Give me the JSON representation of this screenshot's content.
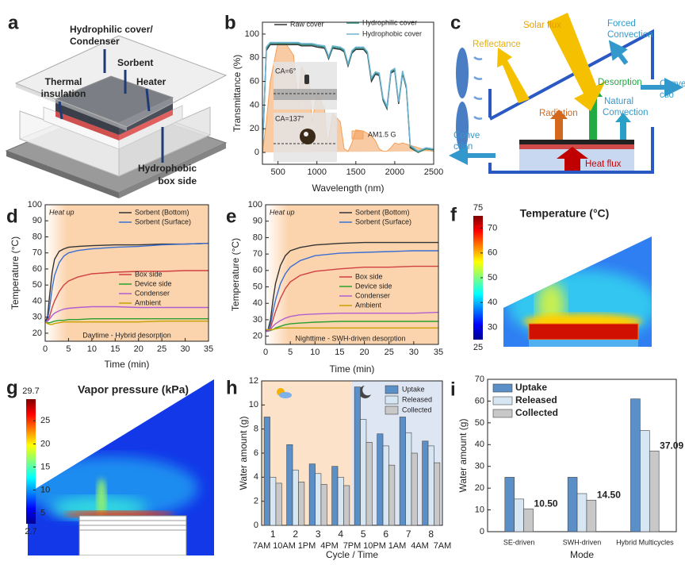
{
  "panel_labels": [
    "a",
    "b",
    "c",
    "d",
    "e",
    "f",
    "g",
    "h",
    "i"
  ],
  "figure_a": {
    "labels": {
      "cover": [
        "Hydrophilic cover/",
        "Condenser"
      ],
      "sorbent": "Sorbent",
      "heater": "Heater",
      "insulation": [
        "Thermal",
        "insulation"
      ],
      "box_side": [
        "Hydrophobic",
        "box side"
      ]
    }
  },
  "figure_c": {
    "labels": {
      "solar": "Solar flux",
      "reflectance": "Reflectance",
      "forced": [
        "Forced",
        "Convection"
      ],
      "desorption": "Desorption",
      "natural": [
        "Natural",
        "Convection"
      ],
      "radiation": "Radiation",
      "convection_left": [
        "Conve",
        "ction"
      ],
      "convection_right": [
        "Conve",
        "ctio"
      ],
      "heat": "Heat flux"
    }
  },
  "chart_data": [
    {
      "type": "line",
      "xlabel": "Wavelength (nm)",
      "ylabel": "Transmittance (%)",
      "x": [
        300,
        350,
        400,
        500,
        600,
        700,
        760,
        800,
        900,
        940,
        1000,
        1100,
        1130,
        1150,
        1200,
        1300,
        1350,
        1400,
        1450,
        1500,
        1600,
        1650,
        1700,
        1750,
        1800,
        1850,
        1900,
        1950,
        2000,
        2050,
        2100,
        2150,
        2200,
        2300,
        2400,
        2500
      ],
      "xlim": [
        300,
        2500
      ],
      "xticks": [
        500,
        1000,
        1500,
        2000,
        2500
      ],
      "ylim": [
        -10,
        110
      ],
      "yticks": [
        0,
        20,
        40,
        60,
        80,
        100
      ],
      "series": [
        {
          "name": "Raw cover",
          "color": "#333333",
          "values": [
            0,
            86,
            91,
            91,
            91,
            91,
            91,
            90,
            90,
            90,
            89,
            88,
            83,
            79,
            88,
            87,
            85,
            73,
            84,
            87,
            87,
            83,
            60,
            66,
            65,
            44,
            37,
            67,
            69,
            41,
            67,
            54,
            4,
            0,
            3,
            2
          ]
        },
        {
          "name": "Hydrophilic cover",
          "color": "#2e8b7a",
          "values": [
            0,
            88,
            92,
            92,
            92,
            92,
            92,
            91,
            91,
            91,
            90,
            89,
            84,
            80,
            89,
            88,
            86,
            74,
            85,
            88,
            88,
            84,
            62,
            67,
            66,
            45,
            38,
            68,
            70,
            42,
            68,
            55,
            5,
            0,
            3,
            2
          ]
        },
        {
          "name": "Hydrophobic cover",
          "color": "#6fb3d6",
          "values": [
            0,
            89,
            93,
            93,
            93,
            93,
            93,
            92,
            92,
            92,
            91,
            90,
            85,
            81,
            90,
            89,
            87,
            75,
            86,
            89,
            89,
            85,
            63,
            68,
            67,
            46,
            39,
            69,
            71,
            43,
            69,
            56,
            6,
            1,
            4,
            3
          ]
        },
        {
          "name": "AM1.5 G",
          "color": "#f3a05a",
          "area": true,
          "values": [
            0,
            25,
            60,
            93,
            92,
            82,
            40,
            72,
            62,
            25,
            52,
            36,
            10,
            12,
            33,
            26,
            3,
            1,
            8,
            19,
            18,
            16,
            14,
            10,
            3,
            1,
            1,
            4,
            8,
            7,
            8,
            7,
            6,
            4,
            2,
            1
          ]
        }
      ],
      "annotations": [
        "CA=6°",
        "CA=137°"
      ]
    },
    {
      "type": "line",
      "xlabel": "Time (min)",
      "ylabel": "Temperature (°C)",
      "x": [
        0,
        0.5,
        1,
        1.5,
        2,
        3,
        4,
        5,
        7,
        10,
        15,
        20,
        25,
        30,
        35
      ],
      "xlim": [
        0,
        35
      ],
      "xticks": [
        0,
        5,
        10,
        15,
        20,
        25,
        30,
        35
      ],
      "ylim": [
        15,
        100
      ],
      "yticks": [
        20,
        30,
        40,
        50,
        60,
        70,
        80,
        90,
        100
      ],
      "series": [
        {
          "name": "Sorbent (Bottom)",
          "color": "#333333",
          "values": [
            27,
            30,
            45,
            58,
            66,
            71,
            72.5,
            73.5,
            74,
            74.5,
            75,
            75,
            75.5,
            75.5,
            76
          ]
        },
        {
          "name": "Sorbent (Surface)",
          "color": "#3b6fd1",
          "values": [
            27,
            28,
            37,
            48,
            56,
            64,
            68,
            70,
            71.5,
            72.5,
            73.5,
            74,
            75,
            75.5,
            76
          ]
        },
        {
          "name": "Box side",
          "color": "#d04040",
          "values": [
            27,
            27.5,
            31,
            36,
            40,
            46,
            50,
            52.5,
            55,
            57,
            58,
            58.5,
            58.5,
            59,
            59
          ]
        },
        {
          "name": "Device side",
          "color": "#2ca02c",
          "values": [
            27,
            26.5,
            26.5,
            27,
            27.5,
            28,
            28,
            28.5,
            28.5,
            29,
            29,
            29,
            29,
            29,
            29
          ]
        },
        {
          "name": "Condenser",
          "color": "#b05fd0",
          "values": [
            27,
            27.5,
            29,
            31,
            32.5,
            34,
            35,
            35.5,
            36,
            36.5,
            36.5,
            36,
            36,
            36,
            36
          ]
        },
        {
          "name": "Ambient",
          "color": "#c8a000",
          "values": [
            27,
            26,
            25.5,
            25.5,
            26,
            26.5,
            27,
            27,
            27,
            27,
            27,
            27,
            27.5,
            27.5,
            27.5
          ]
        }
      ],
      "annotations": [
        "Heat up",
        "Daytime - Hybrid desorption"
      ]
    },
    {
      "type": "line",
      "xlabel": "Time (min)",
      "ylabel": "Temperature (°C)",
      "x": [
        0,
        0.5,
        1,
        1.5,
        2,
        3,
        4,
        5,
        7,
        10,
        15,
        20,
        25,
        30,
        35
      ],
      "xlim": [
        0,
        35
      ],
      "xticks": [
        0,
        5,
        10,
        15,
        20,
        25,
        30,
        35
      ],
      "ylim": [
        15,
        100
      ],
      "yticks": [
        20,
        30,
        40,
        50,
        60,
        70,
        80,
        90,
        100
      ],
      "series": [
        {
          "name": "Sorbent (Bottom)",
          "color": "#333333",
          "values": [
            23,
            24,
            30,
            42,
            52,
            63,
            69,
            72,
            74,
            75.5,
            76.5,
            77,
            77,
            77,
            77
          ]
        },
        {
          "name": "Sorbent (Surface)",
          "color": "#3b6fd1",
          "values": [
            23,
            23.5,
            27,
            35,
            42,
            52,
            58,
            62,
            66,
            69,
            70.5,
            71,
            71.5,
            72,
            72
          ]
        },
        {
          "name": "Box side",
          "color": "#d04040",
          "values": [
            23,
            23,
            25,
            30,
            35,
            43,
            49,
            53,
            57,
            59.5,
            61,
            62,
            62,
            62.5,
            62.5
          ]
        },
        {
          "name": "Device side",
          "color": "#2ca02c",
          "values": [
            23,
            23,
            23.5,
            24,
            25,
            26,
            27,
            27.5,
            28,
            28.5,
            29,
            29,
            29,
            29,
            29
          ]
        },
        {
          "name": "Condenser",
          "color": "#b05fd0",
          "values": [
            23,
            23,
            24,
            26,
            27.5,
            29.5,
            31,
            32,
            33,
            33.5,
            34,
            34,
            34,
            34,
            34.5
          ]
        },
        {
          "name": "Ambient",
          "color": "#c8a000",
          "values": [
            24,
            24,
            24,
            24,
            24.5,
            25,
            25,
            25,
            25,
            25,
            25,
            25,
            25,
            25,
            25
          ]
        }
      ],
      "annotations": [
        "Heat up",
        "Nighttime - SWH-driven desorption"
      ]
    },
    {
      "type": "bar",
      "xlabel": "Cycle / Time",
      "ylabel": "Water amount (g)",
      "categories": [
        "1",
        "2",
        "3",
        "4",
        "5",
        "6",
        "7",
        "8"
      ],
      "time_labels": [
        "7AM",
        "10AM",
        "1PM",
        "4PM",
        "7PM",
        "10PM",
        "1AM",
        "4AM",
        "7AM"
      ],
      "ylim": [
        0,
        12
      ],
      "yticks": [
        0,
        2,
        4,
        6,
        8,
        10,
        12
      ],
      "series": [
        {
          "name": "Uptake",
          "color": "#5b8fc7",
          "values": [
            9.0,
            6.7,
            5.1,
            4.9,
            11.5,
            7.6,
            9.0,
            7.0
          ]
        },
        {
          "name": "Released",
          "color": "#d6e6f3",
          "values": [
            4.0,
            4.6,
            4.3,
            4.0,
            8.8,
            6.6,
            7.7,
            6.6
          ]
        },
        {
          "name": "Collected",
          "color": "#c8c8c8",
          "values": [
            3.5,
            3.6,
            3.4,
            3.3,
            6.9,
            5.0,
            6.0,
            5.2
          ]
        }
      ]
    },
    {
      "type": "bar",
      "xlabel": "Mode",
      "ylabel": "Water amount (g)",
      "categories": [
        "SE-driven",
        "SWH-driven",
        "Hybrid Multicycles"
      ],
      "ylim": [
        0,
        70
      ],
      "yticks": [
        0,
        10,
        20,
        30,
        40,
        50,
        60,
        70
      ],
      "series": [
        {
          "name": "Uptake",
          "color": "#5b8fc7",
          "values": [
            25,
            25,
            61
          ]
        },
        {
          "name": "Released",
          "color": "#d6e6f3",
          "values": [
            15,
            17.5,
            46.5
          ]
        },
        {
          "name": "Collected",
          "color": "#c8c8c8",
          "values": [
            10.5,
            14.5,
            37.09
          ],
          "value_labels": [
            "10.50",
            "14.50",
            "37.09"
          ]
        }
      ]
    }
  ],
  "figure_f": {
    "title": "Temperature (°C)",
    "colorbar": {
      "range": [
        25,
        75
      ],
      "ticks": [
        25,
        30,
        40,
        50,
        60,
        70,
        75
      ]
    }
  },
  "figure_g": {
    "title": "Vapor pressure (kPa)",
    "colorbar": {
      "range": [
        2.7,
        29.7
      ],
      "ticks": [
        2.7,
        5,
        10,
        15,
        20,
        25,
        29.7
      ]
    }
  }
}
